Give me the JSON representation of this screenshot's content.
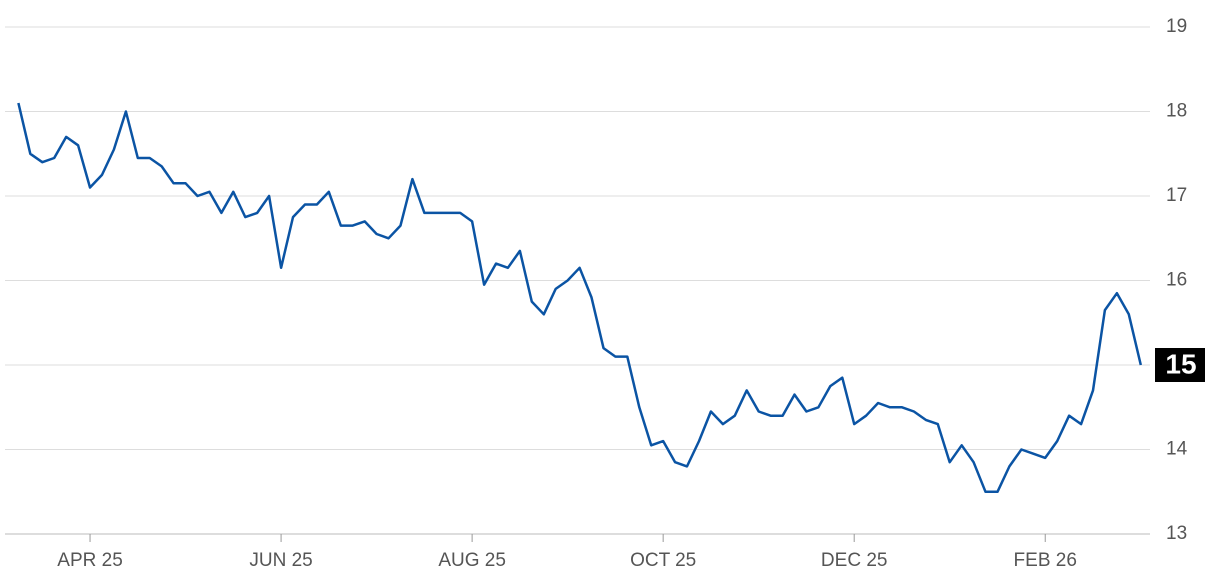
{
  "chart_data": {
    "type": "line",
    "categories": [
      null,
      null,
      null,
      null,
      null,
      null,
      "APR 25",
      null,
      null,
      null,
      null,
      null,
      null,
      null,
      null,
      null,
      null,
      null,
      null,
      null,
      null,
      null,
      "JUN 25",
      null,
      null,
      null,
      null,
      null,
      null,
      null,
      null,
      null,
      null,
      null,
      null,
      null,
      null,
      null,
      "AUG 25",
      null,
      null,
      null,
      null,
      null,
      null,
      null,
      null,
      null,
      null,
      null,
      null,
      null,
      null,
      null,
      "OCT 25",
      null,
      null,
      null,
      null,
      null,
      null,
      null,
      null,
      null,
      null,
      null,
      null,
      null,
      null,
      null,
      "DEC 25",
      null,
      null,
      null,
      null,
      null,
      null,
      null,
      null,
      null,
      null,
      null,
      null,
      null,
      null,
      null,
      "FEB 26",
      null,
      null,
      null,
      null,
      null,
      null,
      null,
      null
    ],
    "values": [
      18.1,
      17.5,
      17.4,
      17.45,
      17.7,
      17.6,
      17.1,
      17.25,
      17.55,
      18.0,
      17.45,
      17.45,
      17.35,
      17.15,
      17.15,
      17.0,
      17.05,
      16.8,
      17.05,
      16.75,
      16.8,
      17.0,
      16.15,
      16.75,
      16.9,
      16.9,
      17.05,
      16.65,
      16.65,
      16.7,
      16.55,
      16.5,
      16.65,
      17.2,
      16.8,
      16.8,
      16.8,
      16.8,
      16.7,
      15.95,
      16.2,
      16.15,
      16.35,
      15.75,
      15.6,
      15.9,
      16.0,
      16.15,
      15.8,
      15.2,
      15.1,
      15.1,
      14.5,
      14.05,
      14.1,
      13.85,
      13.8,
      14.1,
      14.45,
      14.3,
      14.4,
      14.7,
      14.45,
      14.4,
      14.4,
      14.65,
      14.45,
      14.5,
      14.75,
      14.85,
      14.3,
      14.4,
      14.55,
      14.5,
      14.5,
      14.45,
      14.35,
      14.3,
      13.85,
      14.05,
      13.85,
      13.5,
      13.5,
      13.8,
      14.0,
      13.95,
      13.9,
      14.1,
      14.4,
      14.3,
      14.7,
      15.65,
      15.85,
      15.6,
      15.0
    ],
    "color": "#0b54a4",
    "ylim": [
      13,
      19
    ],
    "yticks": [
      13,
      14,
      15,
      16,
      17,
      18,
      19
    ],
    "grid": true
  }
}
